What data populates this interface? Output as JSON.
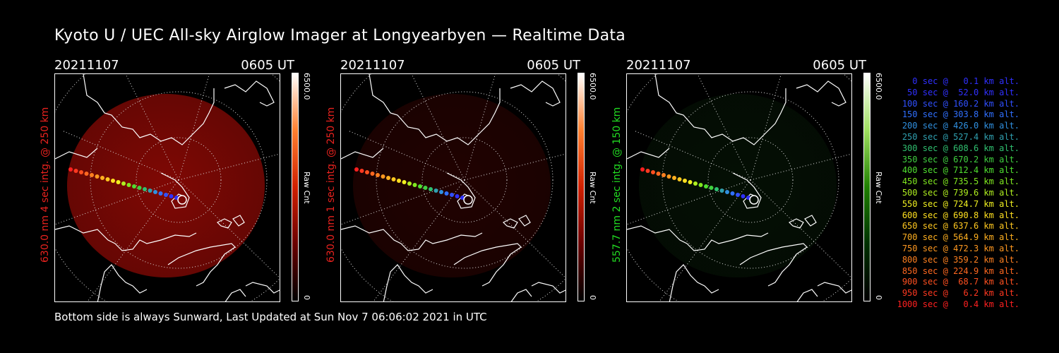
{
  "title": "Kyoto U / UEC All-sky Airglow Imager at Longyearbyen — Realtime Data",
  "footer": "Bottom side is always Sunward, Last Updated at Sun Nov  7 06:06:02 2021 in UTC",
  "panels": [
    {
      "date": "20211107",
      "time": "0605 UT",
      "ylabel": "630.0 nm 4 sec intg. @ 250 km",
      "ylabel_color": "#e8221e",
      "colorbar_max": "6500.0",
      "colorbar_min": "0",
      "colorbar_unit": "Raw Cnt",
      "colormap": "red",
      "intensity": 0.85
    },
    {
      "date": "20211107",
      "time": "0605 UT",
      "ylabel": "630.0 nm 1 sec intg. @ 250 km",
      "ylabel_color": "#e8221e",
      "colorbar_max": "6500.0",
      "colorbar_min": "0",
      "colorbar_unit": "Raw Cnt",
      "colormap": "red",
      "intensity": 0.22
    },
    {
      "date": "20211107",
      "time": "0605 UT",
      "ylabel": "557.7 nm 2 sec intg. @ 150 km",
      "ylabel_color": "#22dd22",
      "colorbar_max": "6500.0",
      "colorbar_min": "0",
      "colorbar_unit": "Raw Cnt",
      "colormap": "green",
      "intensity": 0.22
    }
  ],
  "legend": [
    {
      "text": "   0 sec @   0.1 km alt.",
      "color": "#3030ff"
    },
    {
      "text": "  50 sec @  52.0 km alt.",
      "color": "#3030ff"
    },
    {
      "text": " 100 sec @ 160.2 km alt.",
      "color": "#3050ff"
    },
    {
      "text": " 150 sec @ 303.8 km alt.",
      "color": "#3070ff"
    },
    {
      "text": " 200 sec @ 426.0 km alt.",
      "color": "#3090e0"
    },
    {
      "text": " 250 sec @ 527.4 km alt.",
      "color": "#30a0b0"
    },
    {
      "text": " 300 sec @ 608.6 km alt.",
      "color": "#30c070"
    },
    {
      "text": " 350 sec @ 670.2 km alt.",
      "color": "#40d040"
    },
    {
      "text": " 400 sec @ 712.4 km alt.",
      "color": "#50e030"
    },
    {
      "text": " 450 sec @ 735.5 km alt.",
      "color": "#80e820"
    },
    {
      "text": " 500 sec @ 739.6 km alt.",
      "color": "#b0f020"
    },
    {
      "text": " 550 sec @ 724.7 km alt.",
      "color": "#f0f020"
    },
    {
      "text": " 600 sec @ 690.8 km alt.",
      "color": "#ffe020"
    },
    {
      "text": " 650 sec @ 637.6 km alt.",
      "color": "#ffc820"
    },
    {
      "text": " 700 sec @ 564.9 km alt.",
      "color": "#ffb020"
    },
    {
      "text": " 750 sec @ 472.3 km alt.",
      "color": "#ff9820"
    },
    {
      "text": " 800 sec @ 359.2 km alt.",
      "color": "#ff8020"
    },
    {
      "text": " 850 sec @ 224.9 km alt.",
      "color": "#ff6820"
    },
    {
      "text": " 900 sec @  68.7 km alt.",
      "color": "#ff5020"
    },
    {
      "text": " 950 sec @   6.2 km alt.",
      "color": "#ff3820"
    },
    {
      "text": "1000 sec @   0.4 km alt.",
      "color": "#ff2020"
    }
  ]
}
